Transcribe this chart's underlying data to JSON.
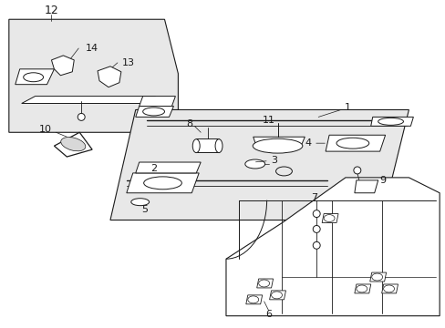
{
  "bg_color": "#ffffff",
  "line_color": "#1a1a1a",
  "gray_fill": "#e8e8e8",
  "white_fill": "#ffffff",
  "figsize": [
    4.89,
    3.6
  ],
  "dpi": 100
}
